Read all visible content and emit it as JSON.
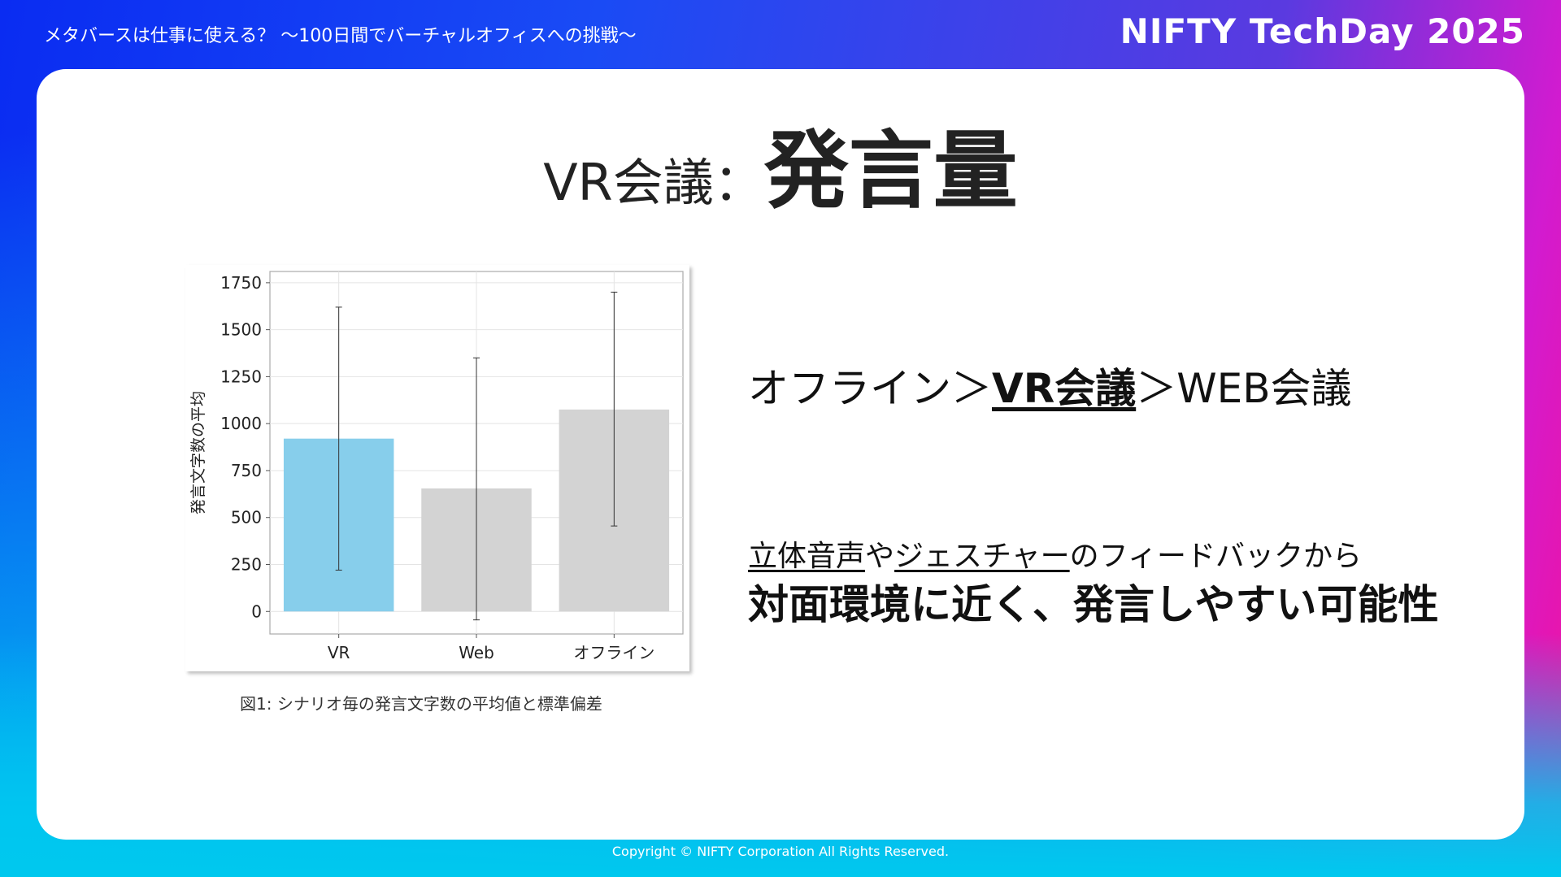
{
  "header": {
    "deck_title": "メタバースは仕事に使える？ 〜100日間でバーチャルオフィスへの挑戦〜",
    "brand": "NIFTY TechDay 2025"
  },
  "slide": {
    "heading_prefix": "VR会議：",
    "heading_main": "発言量",
    "caption": "図1: シナリオ毎の発言文字数の平均値と標準偏差",
    "comparison": {
      "part1": "オフライン＞",
      "highlight": "VR会議",
      "part2": "＞WEB会議"
    },
    "feedback": {
      "u1": "立体音声",
      "t1": "や",
      "u2": "ジェスチャー",
      "t2": "のフィードバックから"
    },
    "conclusion": "対面環境に近く、発言しやすい可能性"
  },
  "footer": {
    "copyright": "Copyright © NIFTY Corporation All Rights Reserved."
  },
  "colors": {
    "vr_bar": "#87ceeb",
    "other_bar": "#d3d3d3",
    "grid": "#e4e4e4"
  },
  "chart_data": {
    "type": "bar",
    "categories": [
      "VR",
      "Web",
      "オフライン"
    ],
    "values": [
      920,
      655,
      1075
    ],
    "error_low": [
      220,
      -45,
      455
    ],
    "error_high": [
      1620,
      1350,
      1700
    ],
    "ylabel": "発言文字数の平均",
    "ylim": [
      -120,
      1810
    ],
    "yticks": [
      0,
      250,
      500,
      750,
      1000,
      1250,
      1500,
      1750
    ],
    "grid": true
  }
}
